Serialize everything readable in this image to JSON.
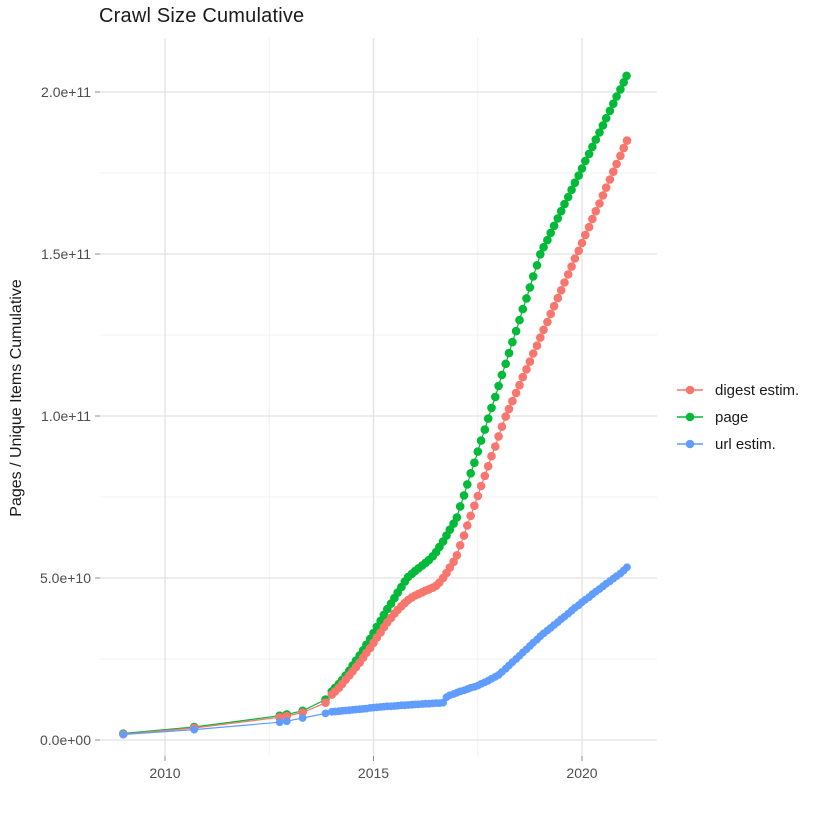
{
  "title": "Crawl Size Cumulative",
  "axes": {
    "y_label": "Pages / Unique Items Cumulative",
    "x_ticks": [
      {
        "label": "2010",
        "year": 2010
      },
      {
        "label": "2015",
        "year": 2015
      },
      {
        "label": "2020",
        "year": 2020
      }
    ],
    "x_minor_years": [
      2012.5,
      2017.5
    ],
    "y_ticks": [
      {
        "label": "0.0e+00",
        "value": 0
      },
      {
        "label": "5.0e+10",
        "value": 50
      },
      {
        "label": "1.0e+11",
        "value": 100
      },
      {
        "label": "1.5e+11",
        "value": 150
      },
      {
        "label": "2.0e+11",
        "value": 200
      }
    ],
    "y_minor_values": [
      25,
      75,
      125,
      175
    ]
  },
  "legend": {
    "items": [
      {
        "label": "digest estim.",
        "color": "#F8766D"
      },
      {
        "label": "page",
        "color": "#00BA38"
      },
      {
        "label": "url estim.",
        "color": "#619CFF"
      }
    ]
  },
  "colors": {
    "digest": "#F8766D",
    "page": "#00BA38",
    "url": "#619CFF",
    "grid_major": "#e2e2e2",
    "grid_minor": "#f0f0f0",
    "tick_mark": "#8c8c8c",
    "tick_label": "#4d4d4d",
    "text": "#1a1a1a"
  },
  "chart_data": {
    "type": "scatter",
    "title": "Crawl Size Cumulative",
    "xlabel": "",
    "ylabel": "Pages / Unique Items Cumulative",
    "x_unit": "year (decimal)",
    "y_unit": "count, values stored in billions (1e9)",
    "xlim": [
      2008.5,
      2022.1
    ],
    "ylim_e9": [
      0,
      215
    ],
    "grid": true,
    "legend_position": "right",
    "series": [
      {
        "name": "page",
        "color": "#00BA38",
        "points": [
          [
            2009.0,
            2
          ],
          [
            2010.7,
            4
          ],
          [
            2012.75,
            7.5
          ],
          [
            2012.92,
            7.9
          ],
          [
            2013.3,
            9
          ],
          [
            2013.85,
            12.5
          ],
          [
            2014.0,
            15
          ],
          [
            2014.08,
            16.1
          ],
          [
            2014.17,
            17.3
          ],
          [
            2014.25,
            18.5
          ],
          [
            2014.33,
            19.9
          ],
          [
            2014.42,
            21.4
          ],
          [
            2014.5,
            23
          ],
          [
            2014.58,
            24.5
          ],
          [
            2014.67,
            26.1
          ],
          [
            2014.75,
            27.7
          ],
          [
            2014.83,
            29.4
          ],
          [
            2014.92,
            31.2
          ],
          [
            2015.0,
            33
          ],
          [
            2015.08,
            34.9
          ],
          [
            2015.17,
            36.8
          ],
          [
            2015.25,
            38.6
          ],
          [
            2015.33,
            40.4
          ],
          [
            2015.42,
            42.1
          ],
          [
            2015.5,
            43.8
          ],
          [
            2015.58,
            45.5
          ],
          [
            2015.67,
            47.2
          ],
          [
            2015.75,
            48.9
          ],
          [
            2015.83,
            50.3
          ],
          [
            2015.92,
            51.3
          ],
          [
            2016.0,
            52.2
          ],
          [
            2016.08,
            53
          ],
          [
            2016.17,
            53.9
          ],
          [
            2016.25,
            54.7
          ],
          [
            2016.33,
            55.6
          ],
          [
            2016.42,
            56.7
          ],
          [
            2016.5,
            58
          ],
          [
            2016.58,
            59.6
          ],
          [
            2016.67,
            61.3
          ],
          [
            2016.75,
            63.1
          ],
          [
            2016.83,
            64.9
          ],
          [
            2016.92,
            66.8
          ],
          [
            2017.0,
            68.7
          ],
          [
            2017.08,
            72.1
          ],
          [
            2017.17,
            75.5
          ],
          [
            2017.25,
            78.9
          ],
          [
            2017.33,
            82.3
          ],
          [
            2017.42,
            85.6
          ],
          [
            2017.5,
            89
          ],
          [
            2017.58,
            92.4
          ],
          [
            2017.67,
            95.8
          ],
          [
            2017.75,
            99.2
          ],
          [
            2017.83,
            102.5
          ],
          [
            2017.92,
            105.9
          ],
          [
            2018.0,
            109.3
          ],
          [
            2018.08,
            112.7
          ],
          [
            2018.17,
            116.1
          ],
          [
            2018.25,
            119.4
          ],
          [
            2018.33,
            122.8
          ],
          [
            2018.42,
            126.2
          ],
          [
            2018.5,
            129.6
          ],
          [
            2018.58,
            133
          ],
          [
            2018.67,
            136.3
          ],
          [
            2018.75,
            139.7
          ],
          [
            2018.83,
            143.1
          ],
          [
            2018.92,
            146.5
          ],
          [
            2019.0,
            149.9
          ],
          [
            2019.08,
            152.1
          ],
          [
            2019.17,
            154.3
          ],
          [
            2019.25,
            156.5
          ],
          [
            2019.33,
            158.7
          ],
          [
            2019.42,
            161
          ],
          [
            2019.5,
            163.2
          ],
          [
            2019.58,
            165.4
          ],
          [
            2019.67,
            167.6
          ],
          [
            2019.75,
            169.8
          ],
          [
            2019.83,
            172
          ],
          [
            2019.92,
            174.2
          ],
          [
            2020.0,
            176.4
          ],
          [
            2020.08,
            178.7
          ],
          [
            2020.17,
            180.9
          ],
          [
            2020.25,
            183.1
          ],
          [
            2020.33,
            185.3
          ],
          [
            2020.42,
            187.5
          ],
          [
            2020.5,
            189.7
          ],
          [
            2020.58,
            191.9
          ],
          [
            2020.67,
            194.2
          ],
          [
            2020.75,
            196.4
          ],
          [
            2020.83,
            198.6
          ],
          [
            2020.92,
            200.8
          ],
          [
            2021.0,
            203
          ],
          [
            2021.07,
            205
          ]
        ]
      },
      {
        "name": "digest estim.",
        "color": "#F8766D",
        "points": [
          [
            2009.0,
            1.8
          ],
          [
            2010.7,
            3.7
          ],
          [
            2012.75,
            7
          ],
          [
            2012.92,
            7.4
          ],
          [
            2013.3,
            8.5
          ],
          [
            2013.85,
            11.5
          ],
          [
            2014.0,
            14
          ],
          [
            2014.08,
            15
          ],
          [
            2014.17,
            16.1
          ],
          [
            2014.25,
            17.3
          ],
          [
            2014.33,
            18.6
          ],
          [
            2014.42,
            19.9
          ],
          [
            2014.5,
            21.2
          ],
          [
            2014.58,
            22.5
          ],
          [
            2014.67,
            23.9
          ],
          [
            2014.75,
            25.4
          ],
          [
            2014.83,
            26.9
          ],
          [
            2014.92,
            28.4
          ],
          [
            2015.0,
            30
          ],
          [
            2015.08,
            31.6
          ],
          [
            2015.17,
            33.2
          ],
          [
            2015.25,
            34.8
          ],
          [
            2015.33,
            36.3
          ],
          [
            2015.42,
            37.7
          ],
          [
            2015.5,
            39
          ],
          [
            2015.58,
            40.2
          ],
          [
            2015.67,
            41.3
          ],
          [
            2015.75,
            42.3
          ],
          [
            2015.83,
            43.2
          ],
          [
            2015.92,
            44
          ],
          [
            2016.0,
            44.6
          ],
          [
            2016.08,
            45.1
          ],
          [
            2016.17,
            45.6
          ],
          [
            2016.25,
            46.1
          ],
          [
            2016.33,
            46.5
          ],
          [
            2016.42,
            47
          ],
          [
            2016.5,
            47.6
          ],
          [
            2016.58,
            48.6
          ],
          [
            2016.67,
            50
          ],
          [
            2016.75,
            51.5
          ],
          [
            2016.83,
            53.2
          ],
          [
            2016.92,
            55
          ],
          [
            2017.0,
            57
          ],
          [
            2017.08,
            60.1
          ],
          [
            2017.17,
            63.1
          ],
          [
            2017.25,
            66.2
          ],
          [
            2017.33,
            69.2
          ],
          [
            2017.42,
            72.3
          ],
          [
            2017.5,
            75.3
          ],
          [
            2017.58,
            78.4
          ],
          [
            2017.67,
            81.5
          ],
          [
            2017.75,
            84.5
          ],
          [
            2017.83,
            87.6
          ],
          [
            2017.92,
            90.6
          ],
          [
            2018.0,
            93.7
          ],
          [
            2018.08,
            96.7
          ],
          [
            2018.17,
            99.8
          ],
          [
            2018.25,
            102.2
          ],
          [
            2018.33,
            104.6
          ],
          [
            2018.42,
            107.1
          ],
          [
            2018.5,
            109.5
          ],
          [
            2018.58,
            112
          ],
          [
            2018.67,
            114.4
          ],
          [
            2018.75,
            116.8
          ],
          [
            2018.83,
            119.3
          ],
          [
            2018.92,
            121.7
          ],
          [
            2019.0,
            124.2
          ],
          [
            2019.08,
            126.6
          ],
          [
            2019.17,
            129
          ],
          [
            2019.25,
            131.5
          ],
          [
            2019.33,
            133.9
          ],
          [
            2019.42,
            136.4
          ],
          [
            2019.5,
            138.8
          ],
          [
            2019.58,
            141.2
          ],
          [
            2019.67,
            143.7
          ],
          [
            2019.75,
            146.1
          ],
          [
            2019.83,
            148.6
          ],
          [
            2019.92,
            151
          ],
          [
            2020.0,
            153.4
          ],
          [
            2020.08,
            155.9
          ],
          [
            2020.17,
            158.3
          ],
          [
            2020.25,
            160.8
          ],
          [
            2020.33,
            163.2
          ],
          [
            2020.42,
            165.6
          ],
          [
            2020.5,
            168.1
          ],
          [
            2020.58,
            170.5
          ],
          [
            2020.67,
            173
          ],
          [
            2020.75,
            175.4
          ],
          [
            2020.83,
            177.8
          ],
          [
            2020.92,
            180.3
          ],
          [
            2021.0,
            182.7
          ],
          [
            2021.08,
            185
          ]
        ]
      },
      {
        "name": "url estim.",
        "color": "#619CFF",
        "points": [
          [
            2009.0,
            1.7
          ],
          [
            2010.7,
            3.2
          ],
          [
            2012.75,
            5.5
          ],
          [
            2012.92,
            5.8
          ],
          [
            2013.3,
            6.8
          ],
          [
            2013.85,
            8.2
          ],
          [
            2014.0,
            8.7
          ],
          [
            2014.08,
            8.8
          ],
          [
            2014.17,
            8.9
          ],
          [
            2014.25,
            9
          ],
          [
            2014.33,
            9.1
          ],
          [
            2014.42,
            9.2
          ],
          [
            2014.5,
            9.3
          ],
          [
            2014.58,
            9.4
          ],
          [
            2014.67,
            9.5
          ],
          [
            2014.75,
            9.6
          ],
          [
            2014.83,
            9.7
          ],
          [
            2014.92,
            9.9
          ],
          [
            2015.0,
            10
          ],
          [
            2015.08,
            10.1
          ],
          [
            2015.17,
            10.2
          ],
          [
            2015.25,
            10.3
          ],
          [
            2015.33,
            10.4
          ],
          [
            2015.42,
            10.4
          ],
          [
            2015.5,
            10.5
          ],
          [
            2015.58,
            10.6
          ],
          [
            2015.67,
            10.7
          ],
          [
            2015.75,
            10.7
          ],
          [
            2015.83,
            10.8
          ],
          [
            2015.92,
            10.9
          ],
          [
            2016.0,
            11
          ],
          [
            2016.08,
            11
          ],
          [
            2016.17,
            11.1
          ],
          [
            2016.25,
            11.2
          ],
          [
            2016.33,
            11.2
          ],
          [
            2016.42,
            11.3
          ],
          [
            2016.5,
            11.4
          ],
          [
            2016.58,
            11.4
          ],
          [
            2016.67,
            11.5
          ],
          [
            2016.75,
            13.2
          ],
          [
            2016.83,
            13.8
          ],
          [
            2016.92,
            14.2
          ],
          [
            2017.0,
            14.6
          ],
          [
            2017.08,
            15
          ],
          [
            2017.17,
            15.3
          ],
          [
            2017.25,
            15.7
          ],
          [
            2017.33,
            16.1
          ],
          [
            2017.42,
            16.4
          ],
          [
            2017.5,
            16.8
          ],
          [
            2017.58,
            17.3
          ],
          [
            2017.67,
            17.8
          ],
          [
            2017.75,
            18.3
          ],
          [
            2017.83,
            18.9
          ],
          [
            2017.92,
            19.5
          ],
          [
            2018.0,
            20.1
          ],
          [
            2018.08,
            21
          ],
          [
            2018.17,
            22
          ],
          [
            2018.25,
            23
          ],
          [
            2018.33,
            24
          ],
          [
            2018.42,
            25
          ],
          [
            2018.5,
            26
          ],
          [
            2018.58,
            27
          ],
          [
            2018.67,
            28
          ],
          [
            2018.75,
            29
          ],
          [
            2018.83,
            30
          ],
          [
            2018.92,
            31
          ],
          [
            2019.0,
            32
          ],
          [
            2019.08,
            32.9
          ],
          [
            2019.17,
            33.8
          ],
          [
            2019.25,
            34.6
          ],
          [
            2019.33,
            35.5
          ],
          [
            2019.42,
            36.4
          ],
          [
            2019.5,
            37.3
          ],
          [
            2019.58,
            38.1
          ],
          [
            2019.67,
            39
          ],
          [
            2019.75,
            39.9
          ],
          [
            2019.83,
            40.8
          ],
          [
            2019.92,
            41.6
          ],
          [
            2020.0,
            42.5
          ],
          [
            2020.08,
            43.3
          ],
          [
            2020.17,
            44.1
          ],
          [
            2020.25,
            45
          ],
          [
            2020.33,
            45.8
          ],
          [
            2020.42,
            46.6
          ],
          [
            2020.5,
            47.4
          ],
          [
            2020.58,
            48.2
          ],
          [
            2020.67,
            49
          ],
          [
            2020.75,
            49.8
          ],
          [
            2020.83,
            50.6
          ],
          [
            2020.92,
            51.4
          ],
          [
            2021.0,
            52.3
          ],
          [
            2021.08,
            53.3
          ]
        ]
      }
    ]
  }
}
